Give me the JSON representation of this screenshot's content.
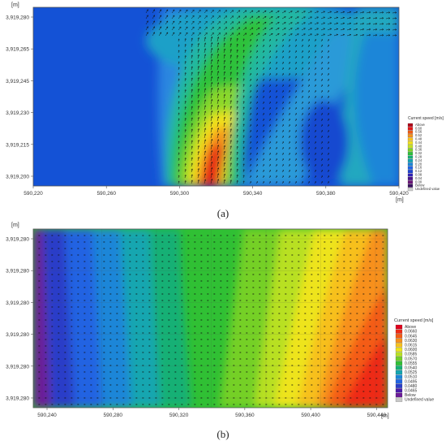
{
  "chart_data": [
    {
      "type": "heatmap",
      "panel_label": "(a)",
      "unit_y": "[m]",
      "unit_x": "[m]",
      "x_ticks": [
        "590,220",
        "590,260",
        "590,300",
        "590,340",
        "590,380",
        "590,420"
      ],
      "y_ticks": [
        "3,919,280",
        "3,919,265",
        "3,919,245",
        "3,919,230",
        "3,919,215",
        "3,919,200"
      ],
      "legend": {
        "title": "Current speed [m/s]",
        "placement": "right",
        "entries": [
          "Above",
          "0.60",
          "0.56",
          "0.52",
          "0.48",
          "0.44",
          "0.40",
          "0.36",
          "0.32",
          "0.28",
          "0.24",
          "0.20",
          "0.16",
          "0.12",
          "0.08",
          "0.04",
          "0.00",
          "Below",
          "Undefined value"
        ],
        "colors": [
          "#b00018",
          "#e41818",
          "#f05a12",
          "#f7941a",
          "#f8c21c",
          "#f3e21d",
          "#c5e224",
          "#7fd32a",
          "#2fc23a",
          "#16b074",
          "#12a3b4",
          "#1a86d8",
          "#1e64e6",
          "#1f44d4",
          "#3022b8",
          "#4a148e",
          "#6a1478",
          "#3a1060",
          "#d0d0d0"
        ]
      },
      "grid": false,
      "vectors": true
    },
    {
      "type": "heatmap",
      "panel_label": "(b)",
      "unit_y": "[m]",
      "unit_x": "[m]",
      "x_ticks": [
        "590,240",
        "590,280",
        "590,320",
        "590,360",
        "590,400",
        "590,440"
      ],
      "y_ticks": [
        "3,919,280",
        "3,919,280",
        "3,919,280",
        "3,919,280",
        "3,919,280",
        "3,919,280"
      ],
      "legend": {
        "title": "Current speed [m/s]",
        "placement": "right",
        "entries": [
          "Above",
          "0.0660",
          "0.0645",
          "0.0630",
          "0.0615",
          "0.0600",
          "0.0585",
          "0.0570",
          "0.0555",
          "0.0540",
          "0.0525",
          "0.0510",
          "0.0495",
          "0.0480",
          "0.0465",
          "Below",
          "Undefined value"
        ],
        "colors": [
          "#e0001c",
          "#ee2a16",
          "#f45c14",
          "#f7901a",
          "#f7c01c",
          "#eee41e",
          "#b8e022",
          "#74d028",
          "#30c034",
          "#16b074",
          "#14a6b0",
          "#1a86d8",
          "#2064e2",
          "#2a3ec8",
          "#4a1aa8",
          "#6c1a98",
          "#c8c8c8"
        ]
      },
      "grid": true,
      "vectors": true
    }
  ]
}
